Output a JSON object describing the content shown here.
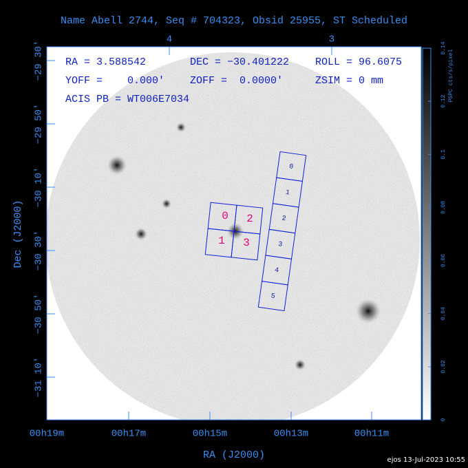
{
  "title": "Name Abell 2744, Seq # 704323, Obsid 25955, ST Scheduled",
  "header": {
    "ra": "RA = 3.588542",
    "dec": "DEC = −30.401222",
    "roll": "ROLL = 96.6075",
    "yoff": "YOFF =    0.000′",
    "zoff": "ZOFF =  0.0000′",
    "zsim": "ZSIM = 0 mm",
    "pb": "ACIS PB = WT006E7034"
  },
  "acis_i_chips": [
    "0",
    "1",
    "2",
    "3"
  ],
  "acis_s_chips": [
    "0",
    "1",
    "2",
    "3",
    "4",
    "5"
  ],
  "x_axis": {
    "label": "RA (J2000)",
    "ticks": [
      "00h19m",
      "00h17m",
      "00h15m",
      "00h13m",
      "00h11m"
    ]
  },
  "top_axis": {
    "ticks": [
      "4",
      "3"
    ]
  },
  "y_axis": {
    "label": "Dec (J2000)",
    "ticks": [
      "−29 30′",
      "−29 50′",
      "−30 10′",
      "−30 30′",
      "−30 50′",
      "−31 10′"
    ]
  },
  "colorbar": {
    "label": "PSPC cts/s/pixel",
    "ticks": [
      "0",
      "0.02",
      "0.04",
      "0.06",
      "0.08",
      "0.1",
      "0.12",
      "0.14"
    ]
  },
  "footer": "ejos 13-Jul-2023 10:55"
}
